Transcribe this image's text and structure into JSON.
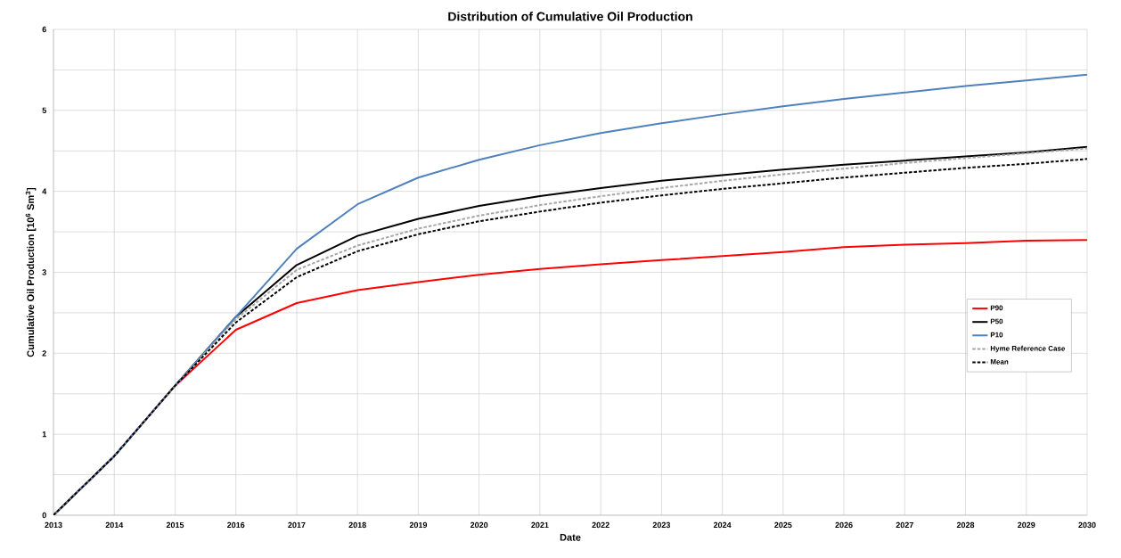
{
  "chart_data": {
    "type": "line",
    "title": "Distribution of Cumulative Oil Production",
    "xlabel": "Date",
    "ylabel": "Cumulative Oil Production [10$^{6}$ Sm$^{3}$]",
    "x": [
      2013,
      2014,
      2015,
      2016,
      2017,
      2018,
      2019,
      2020,
      2021,
      2022,
      2023,
      2024,
      2025,
      2026,
      2027,
      2028,
      2029,
      2030
    ],
    "xlim": [
      2013,
      2030
    ],
    "xticks": [
      2013,
      2014,
      2015,
      2016,
      2017,
      2018,
      2019,
      2020,
      2021,
      2022,
      2023,
      2024,
      2025,
      2026,
      2027,
      2028,
      2029,
      2030
    ],
    "ylim": [
      0,
      6
    ],
    "yticks": [
      0,
      {
        "value": 0.5,
        "label": null
      },
      1,
      {
        "value": 1.5,
        "label": null
      },
      2,
      {
        "value": 2.5,
        "label": null
      },
      3,
      {
        "value": 3.5,
        "label": null
      },
      4,
      {
        "value": 4.5,
        "label": null
      },
      5,
      {
        "value": 5.5,
        "label": null
      },
      6
    ],
    "grid": true,
    "legend": "right",
    "marker": "none",
    "series": [
      {
        "name": "P90",
        "color": "#ff0000",
        "line_style": "solid",
        "values": [
          0,
          0.73,
          1.6,
          2.29,
          2.62,
          2.78,
          2.88,
          2.97,
          3.04,
          3.1,
          3.15,
          3.2,
          3.25,
          3.31,
          3.34,
          3.36,
          3.39,
          3.4
        ]
      },
      {
        "name": "P50",
        "color": "#000000",
        "line_style": "solid",
        "values": [
          0,
          0.73,
          1.6,
          2.45,
          3.09,
          3.45,
          3.66,
          3.82,
          3.94,
          4.04,
          4.13,
          4.2,
          4.27,
          4.33,
          4.38,
          4.43,
          4.48,
          4.55
        ]
      },
      {
        "name": "P10",
        "color": "#4f81bd",
        "line_style": "solid",
        "values": [
          0,
          0.73,
          1.6,
          2.45,
          3.29,
          3.84,
          4.17,
          4.39,
          4.57,
          4.72,
          4.84,
          4.95,
          5.05,
          5.14,
          5.22,
          5.3,
          5.37,
          5.44
        ]
      },
      {
        "name": "Hyme Reference Case",
        "color": "#a6a6a6",
        "line_style": "dashed",
        "values": [
          0,
          0.73,
          1.6,
          2.42,
          3.03,
          3.33,
          3.54,
          3.7,
          3.83,
          3.94,
          4.04,
          4.13,
          4.21,
          4.28,
          4.35,
          4.41,
          4.47,
          4.53
        ]
      },
      {
        "name": "Mean",
        "color": "#000000",
        "line_style": "dashed",
        "values": [
          0,
          0.73,
          1.6,
          2.38,
          2.94,
          3.26,
          3.47,
          3.63,
          3.75,
          3.86,
          3.95,
          4.03,
          4.1,
          4.17,
          4.23,
          4.29,
          4.34,
          4.4
        ]
      }
    ]
  }
}
